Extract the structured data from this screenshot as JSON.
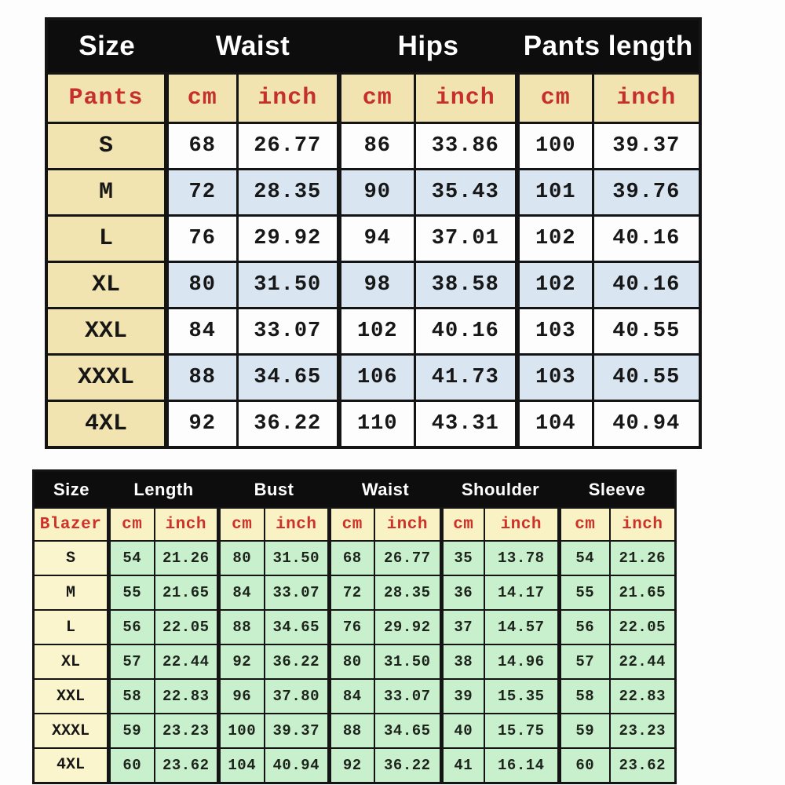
{
  "colors": {
    "header_bg": "#0d0d0d",
    "header_text": "#ffffff",
    "unit_text_red": "#c5302c",
    "cream_pants": "#f2e4b0",
    "cream_blazer": "#faf5cd",
    "highlight_blue_row": "#d9e6f2",
    "green_cell": "#c9f0cc",
    "border_black": "#141414",
    "page_background": "#fdfdfd"
  },
  "chart_data": [
    {
      "type": "table",
      "title": "Pants size chart",
      "group_headers": [
        "Size",
        "Waist",
        "Hips",
        "Pants length"
      ],
      "unit_row": {
        "label": "Pants",
        "units": [
          "cm",
          "inch",
          "cm",
          "inch",
          "cm",
          "inch"
        ]
      },
      "rows": [
        {
          "size": "S",
          "values": [
            "68",
            "26.77",
            "86",
            "33.86",
            "100",
            "39.37"
          ]
        },
        {
          "size": "M",
          "values": [
            "72",
            "28.35",
            "90",
            "35.43",
            "101",
            "39.76"
          ]
        },
        {
          "size": "L",
          "values": [
            "76",
            "29.92",
            "94",
            "37.01",
            "102",
            "40.16"
          ]
        },
        {
          "size": "XL",
          "values": [
            "80",
            "31.50",
            "98",
            "38.58",
            "102",
            "40.16"
          ]
        },
        {
          "size": "XXL",
          "values": [
            "84",
            "33.07",
            "102",
            "40.16",
            "103",
            "40.55"
          ]
        },
        {
          "size": "XXXL",
          "values": [
            "88",
            "34.65",
            "106",
            "41.73",
            "103",
            "40.55"
          ]
        },
        {
          "size": "4XL",
          "values": [
            "92",
            "36.22",
            "110",
            "43.31",
            "104",
            "40.94"
          ]
        }
      ],
      "highlighted_rows": [
        "M",
        "XL",
        "XXXL"
      ],
      "layout_hints": {
        "row_striping": "alternate rows light blue",
        "size_column_background": "cream"
      }
    },
    {
      "type": "table",
      "title": "Blazer size chart",
      "group_headers": [
        "Size",
        "Length",
        "Bust",
        "Waist",
        "Shoulder",
        "Sleeve"
      ],
      "unit_row": {
        "label": "Blazer",
        "units": [
          "cm",
          "inch",
          "cm",
          "inch",
          "cm",
          "inch",
          "cm",
          "inch",
          "cm",
          "inch"
        ]
      },
      "rows": [
        {
          "size": "S",
          "values": [
            "54",
            "21.26",
            "80",
            "31.50",
            "68",
            "26.77",
            "35",
            "13.78",
            "54",
            "21.26"
          ]
        },
        {
          "size": "M",
          "values": [
            "55",
            "21.65",
            "84",
            "33.07",
            "72",
            "28.35",
            "36",
            "14.17",
            "55",
            "21.65"
          ]
        },
        {
          "size": "L",
          "values": [
            "56",
            "22.05",
            "88",
            "34.65",
            "76",
            "29.92",
            "37",
            "14.57",
            "56",
            "22.05"
          ]
        },
        {
          "size": "XL",
          "values": [
            "57",
            "22.44",
            "92",
            "36.22",
            "80",
            "31.50",
            "38",
            "14.96",
            "57",
            "22.44"
          ]
        },
        {
          "size": "XXL",
          "values": [
            "58",
            "22.83",
            "96",
            "37.80",
            "84",
            "33.07",
            "39",
            "15.35",
            "58",
            "22.83"
          ]
        },
        {
          "size": "XXXL",
          "values": [
            "59",
            "23.23",
            "100",
            "39.37",
            "88",
            "34.65",
            "40",
            "15.75",
            "59",
            "23.23"
          ]
        },
        {
          "size": "4XL",
          "values": [
            "60",
            "23.62",
            "104",
            "40.94",
            "92",
            "36.22",
            "41",
            "16.14",
            "60",
            "23.62"
          ]
        }
      ],
      "layout_hints": {
        "data_cell_background": "light green",
        "size_column_background": "cream"
      }
    }
  ]
}
